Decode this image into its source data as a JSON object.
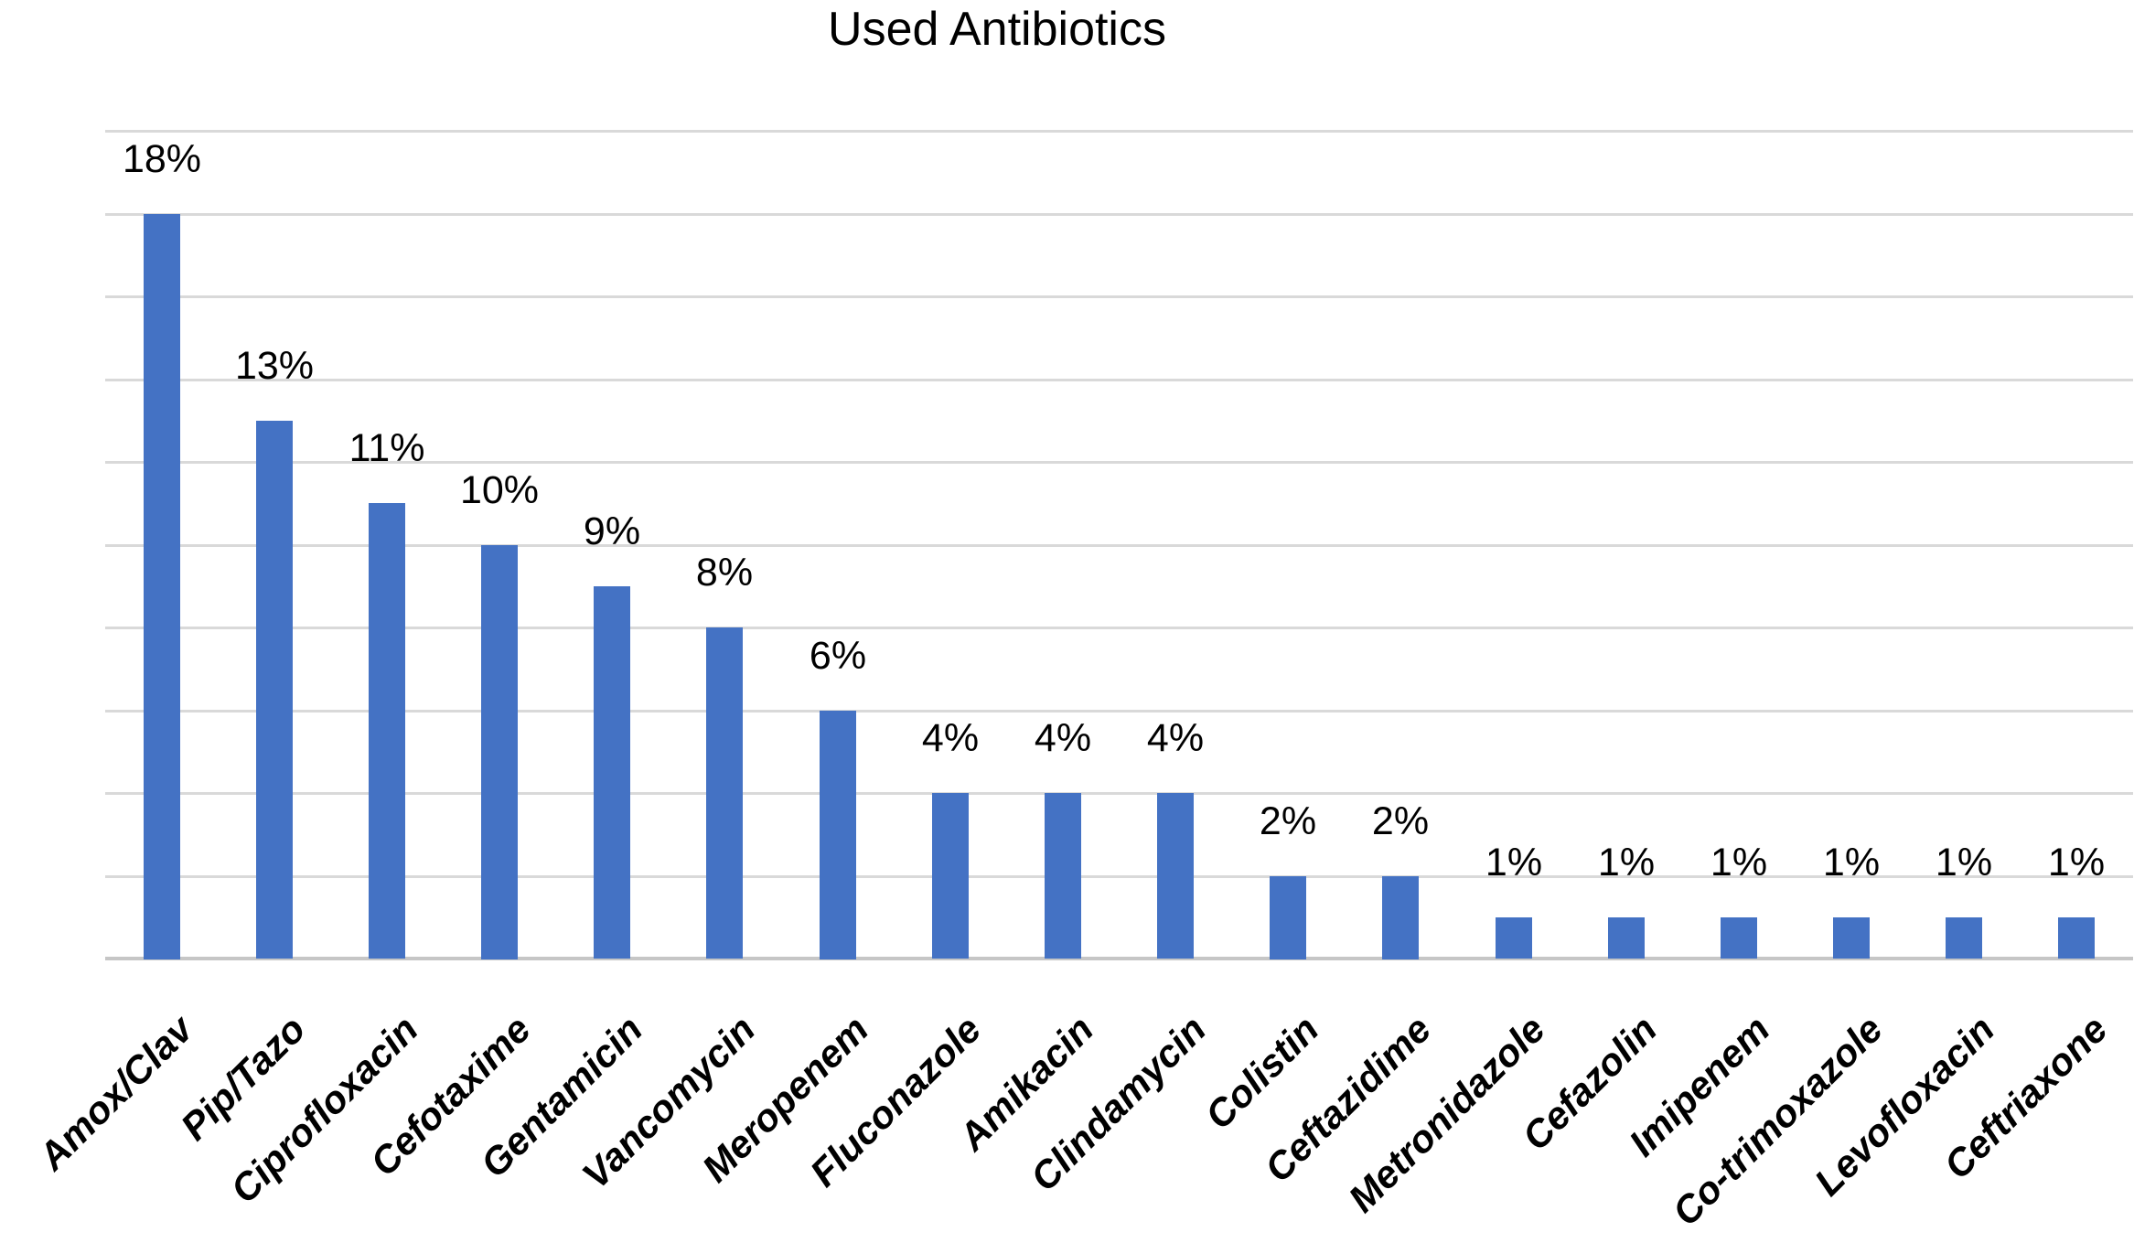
{
  "chart_data": {
    "type": "bar",
    "title": "Used Antibiotics",
    "categories": [
      "Amox/Clav",
      "Pip/Tazo",
      "Ciprofloxacin",
      "Cefotaxime",
      "Gentamicin",
      "Vancomycin",
      "Meropenem",
      "Fluconazole",
      "Amikacin",
      "Clindamycin",
      "Colistin",
      "Ceftazidime",
      "Metronidazole",
      "Cefazolin",
      "Imipenem",
      "Co-trimoxazole",
      "Levofloxacin",
      "Ceftriaxone"
    ],
    "values": [
      18,
      13,
      11,
      10,
      9,
      8,
      6,
      4,
      4,
      4,
      2,
      2,
      1,
      1,
      1,
      1,
      1,
      1
    ],
    "data_label_format": "percent",
    "xlabel": "",
    "ylabel": "",
    "ylim": [
      0,
      20
    ],
    "gridline_step_percent": 2,
    "y_tick_labels_visible": false,
    "legend": "none",
    "colors": {
      "bar": "#4472C4",
      "gridline": "#D9D9D9",
      "axis_line": "#C6C6C6",
      "text": "#000000",
      "background": "#FFFFFF"
    }
  }
}
